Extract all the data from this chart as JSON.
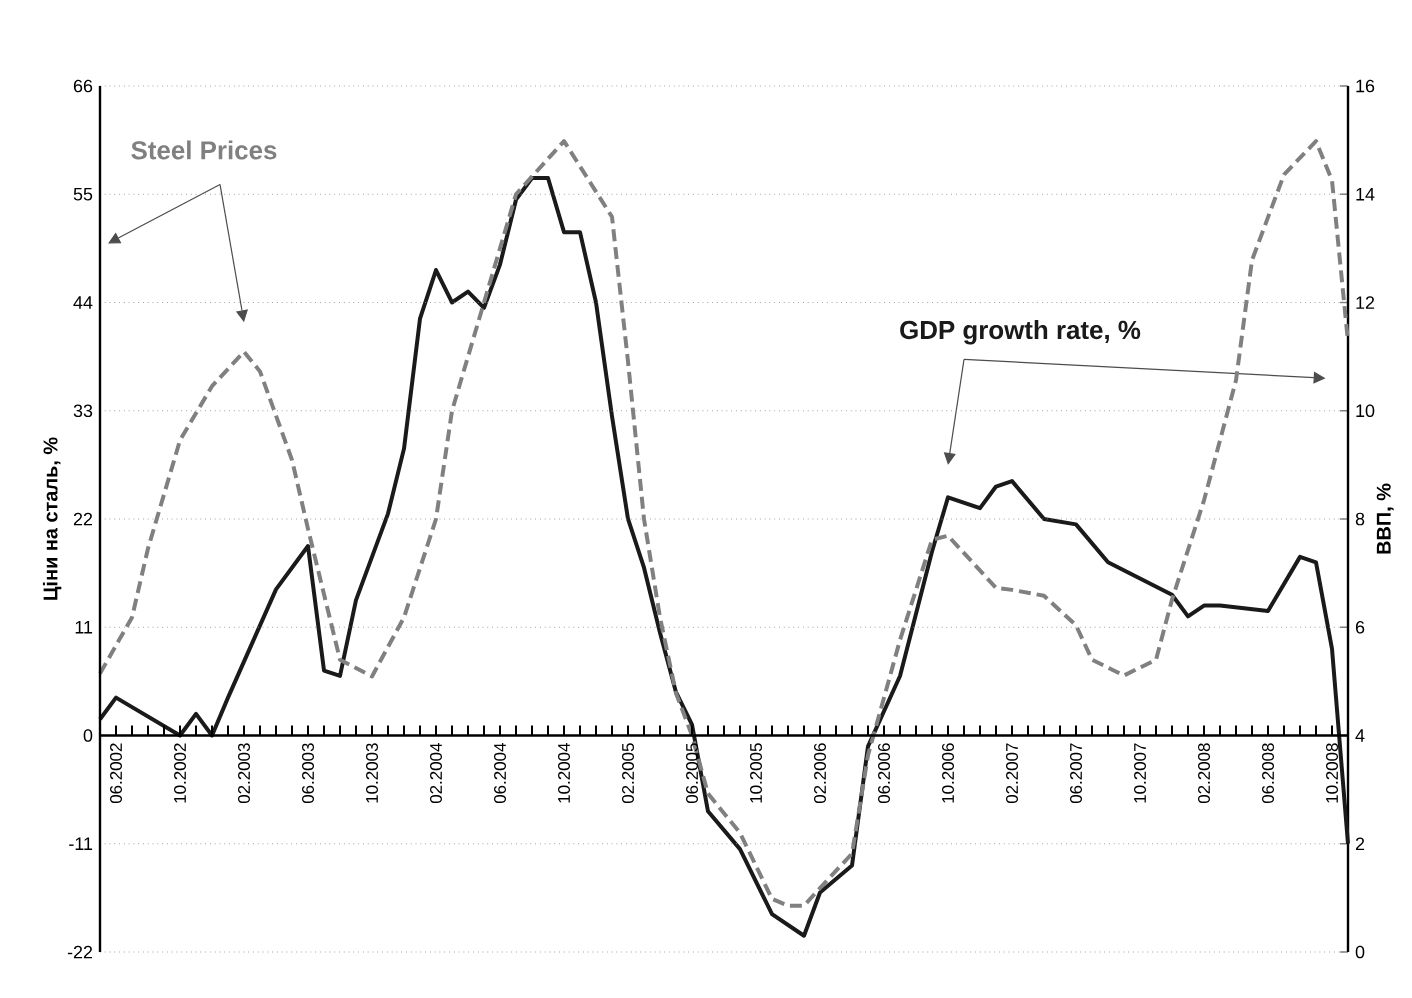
{
  "chart_data": {
    "type": "line",
    "ylabel": "Ціни на сталь, %",
    "y2label": "ВВП, %",
    "grid": "y",
    "xlim": [
      "2002-05",
      "2008-11"
    ],
    "ylim": [
      -22,
      66
    ],
    "yticks": [
      -22,
      -11,
      0,
      11,
      22,
      33,
      44,
      55,
      66
    ],
    "y2lim": [
      0,
      16
    ],
    "y2ticks": [
      0,
      2,
      4,
      6,
      8,
      10,
      12,
      14,
      16
    ],
    "xticks": [
      {
        "value": "2002-06",
        "label": "06.2002"
      },
      {
        "value": "2002-07",
        "label": null
      },
      {
        "value": "2002-08",
        "label": null
      },
      {
        "value": "2002-09",
        "label": null
      },
      {
        "value": "2002-10",
        "label": "10.2002"
      },
      {
        "value": "2002-11",
        "label": null
      },
      {
        "value": "2002-12",
        "label": null
      },
      {
        "value": "2003-01",
        "label": null
      },
      {
        "value": "2003-02",
        "label": "02.2003"
      },
      {
        "value": "2003-03",
        "label": null
      },
      {
        "value": "2003-04",
        "label": null
      },
      {
        "value": "2003-05",
        "label": null
      },
      {
        "value": "2003-06",
        "label": "06.2003"
      },
      {
        "value": "2003-07",
        "label": null
      },
      {
        "value": "2003-08",
        "label": null
      },
      {
        "value": "2003-09",
        "label": null
      },
      {
        "value": "2003-10",
        "label": "10.2003"
      },
      {
        "value": "2003-11",
        "label": null
      },
      {
        "value": "2003-12",
        "label": null
      },
      {
        "value": "2004-01",
        "label": null
      },
      {
        "value": "2004-02",
        "label": "02.2004"
      },
      {
        "value": "2004-03",
        "label": null
      },
      {
        "value": "2004-04",
        "label": null
      },
      {
        "value": "2004-05",
        "label": null
      },
      {
        "value": "2004-06",
        "label": "06.2004"
      },
      {
        "value": "2004-07",
        "label": null
      },
      {
        "value": "2004-08",
        "label": null
      },
      {
        "value": "2004-09",
        "label": null
      },
      {
        "value": "2004-10",
        "label": "10.2004"
      },
      {
        "value": "2004-11",
        "label": null
      },
      {
        "value": "2004-12",
        "label": null
      },
      {
        "value": "2005-01",
        "label": null
      },
      {
        "value": "2005-02",
        "label": "02.2005"
      },
      {
        "value": "2005-03",
        "label": null
      },
      {
        "value": "2005-04",
        "label": null
      },
      {
        "value": "2005-05",
        "label": null
      },
      {
        "value": "2005-06",
        "label": "06.2005"
      },
      {
        "value": "2005-07",
        "label": null
      },
      {
        "value": "2005-08",
        "label": null
      },
      {
        "value": "2005-09",
        "label": null
      },
      {
        "value": "2005-10",
        "label": "10.2005"
      },
      {
        "value": "2005-11",
        "label": null
      },
      {
        "value": "2005-12",
        "label": null
      },
      {
        "value": "2006-01",
        "label": null
      },
      {
        "value": "2006-02",
        "label": "02.2006"
      },
      {
        "value": "2006-03",
        "label": null
      },
      {
        "value": "2006-04",
        "label": null
      },
      {
        "value": "2006-05",
        "label": null
      },
      {
        "value": "2006-06",
        "label": "06.2006"
      },
      {
        "value": "2006-07",
        "label": null
      },
      {
        "value": "2006-08",
        "label": null
      },
      {
        "value": "2006-09",
        "label": null
      },
      {
        "value": "2006-10",
        "label": "10.2006"
      },
      {
        "value": "2006-11",
        "label": null
      },
      {
        "value": "2006-12",
        "label": null
      },
      {
        "value": "2007-01",
        "label": null
      },
      {
        "value": "2007-02",
        "label": "02.2007"
      },
      {
        "value": "2007-03",
        "label": null
      },
      {
        "value": "2007-04",
        "label": null
      },
      {
        "value": "2007-05",
        "label": null
      },
      {
        "value": "2007-06",
        "label": "06.2007"
      },
      {
        "value": "2007-07",
        "label": null
      },
      {
        "value": "2007-08",
        "label": null
      },
      {
        "value": "2007-09",
        "label": null
      },
      {
        "value": "2007-10",
        "label": "10.2007"
      },
      {
        "value": "2007-11",
        "label": null
      },
      {
        "value": "2007-12",
        "label": null
      },
      {
        "value": "2008-01",
        "label": null
      },
      {
        "value": "2008-02",
        "label": "02.2008"
      },
      {
        "value": "2008-03",
        "label": null
      },
      {
        "value": "2008-04",
        "label": null
      },
      {
        "value": "2008-05",
        "label": null
      },
      {
        "value": "2008-06",
        "label": "06.2008"
      },
      {
        "value": "2008-07",
        "label": null
      },
      {
        "value": "2008-08",
        "label": null
      },
      {
        "value": "2008-09",
        "label": null
      },
      {
        "value": "2008-10",
        "label": "10.2008"
      }
    ],
    "series": [
      {
        "name": "Steel Prices",
        "color": "#808080",
        "line_style": "dashed",
        "x": [
          "2002-05",
          "2002-07",
          "2002-08",
          "2002-10",
          "2002-12",
          "2003-02",
          "2003-03",
          "2003-05",
          "2003-06",
          "2003-08",
          "2003-10",
          "2003-12",
          "2004-02",
          "2004-03",
          "2004-05",
          "2004-07",
          "2004-10",
          "2005-01",
          "2005-02",
          "2005-03",
          "2005-04",
          "2005-05",
          "2005-06",
          "2005-07",
          "2005-09",
          "2005-11",
          "2005-12",
          "2006-01",
          "2006-02",
          "2006-04",
          "2006-05",
          "2006-07",
          "2006-09",
          "2006-10",
          "2007-01",
          "2007-02",
          "2007-04",
          "2007-06",
          "2007-07",
          "2007-09",
          "2007-11",
          "2007-12",
          "2008-02",
          "2008-04",
          "2008-05",
          "2008-07",
          "2008-09",
          "2008-10",
          "2008-11"
        ],
        "values": [
          6.3,
          12,
          19,
          30,
          35.5,
          39,
          37,
          28,
          21,
          7.7,
          6,
          12,
          22,
          33,
          44,
          55,
          60.4,
          52.7,
          38,
          22,
          12,
          4.3,
          0,
          -5.9,
          -9.9,
          -16.6,
          -17.3,
          -17.3,
          -15.5,
          -12,
          -2,
          9.7,
          19.9,
          20.3,
          15,
          14.8,
          14.2,
          11.2,
          7.7,
          6.1,
          7.7,
          13.8,
          23.9,
          36.1,
          48.3,
          57,
          60.4,
          56.4,
          40
        ]
      },
      {
        "name": "GDP growth rate, %",
        "color": "#1a1a1a",
        "line_style": "solid",
        "axis": "y2",
        "x": [
          "2002-05",
          "2002-06",
          "2002-10",
          "2002-11",
          "2002-12",
          "2003-01",
          "2003-04",
          "2003-06",
          "2003-07",
          "2003-08",
          "2003-09",
          "2003-11",
          "2003-12",
          "2004-01",
          "2004-02",
          "2004-03",
          "2004-04",
          "2004-05",
          "2004-06",
          "2004-07",
          "2004-08",
          "2004-09",
          "2004-10",
          "2004-11",
          "2004-12",
          "2005-01",
          "2005-02",
          "2005-03",
          "2005-04",
          "2005-05",
          "2005-06",
          "2005-07",
          "2005-09",
          "2005-11",
          "2006-01",
          "2006-02",
          "2006-04",
          "2006-05",
          "2006-07",
          "2006-09",
          "2006-10",
          "2006-12",
          "2007-01",
          "2007-02",
          "2007-04",
          "2007-06",
          "2007-08",
          "2007-10",
          "2007-12",
          "2008-01",
          "2008-02",
          "2008-03",
          "2008-06",
          "2008-08",
          "2008-09",
          "2008-10",
          "2008-11"
        ],
        "values": [
          4.3,
          4.7,
          4.0,
          4.4,
          4.0,
          4.7,
          6.7,
          7.5,
          5.2,
          5.1,
          6.5,
          8.1,
          9.3,
          11.7,
          12.6,
          12.0,
          12.2,
          11.9,
          12.7,
          13.9,
          14.3,
          14.3,
          13.3,
          13.3,
          12.0,
          9.9,
          8.0,
          7.1,
          5.9,
          4.8,
          4.2,
          2.6,
          1.9,
          0.7,
          0.3,
          1.1,
          1.6,
          3.8,
          5.1,
          7.4,
          8.4,
          8.2,
          8.6,
          8.7,
          8.0,
          7.9,
          7.2,
          6.9,
          6.6,
          6.2,
          6.4,
          6.4,
          6.3,
          7.3,
          7.2,
          5.6,
          2.0
        ]
      }
    ]
  }
}
